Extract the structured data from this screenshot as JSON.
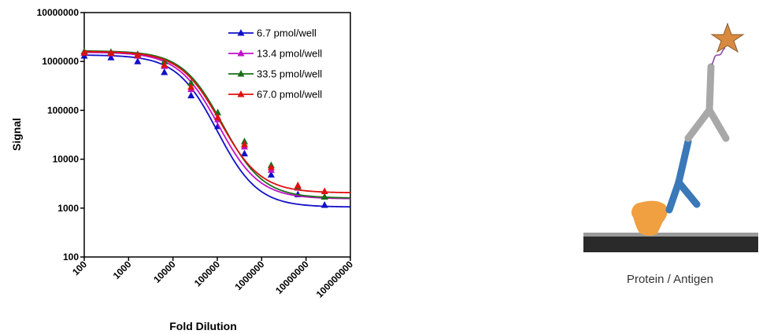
{
  "chart_data": {
    "type": "line",
    "xlabel": "Fold Dilution",
    "ylabel": "Signal",
    "x_scale": "log",
    "y_scale": "log",
    "xlim": [
      100,
      100000000
    ],
    "ylim": [
      100,
      10000000
    ],
    "x_tick_labels": [
      "100",
      "1000",
      "10000",
      "100000",
      "1000000",
      "10000000",
      "100000000"
    ],
    "x_ticks": [
      100,
      1000,
      10000,
      100000,
      1000000,
      10000000,
      100000000
    ],
    "y_tick_labels": [
      "100",
      "1000",
      "10000",
      "100000",
      "1000000",
      "10000000"
    ],
    "y_ticks": [
      100,
      1000,
      10000,
      100000,
      1000000,
      10000000
    ],
    "grid": false,
    "legend_position": "top-right",
    "marker": "triangle",
    "series": [
      {
        "name": "6.7 pmol/well",
        "color": "#1010c8",
        "x": [
          100,
          400,
          1600,
          6400,
          25600,
          102400,
          409600,
          1638400,
          6553600,
          26214400
        ],
        "y": [
          1300000,
          1200000,
          1000000,
          600000,
          200000,
          47000,
          13000,
          4800,
          1900,
          1150
        ],
        "fit": {
          "top": 1360000,
          "bottom": 1050,
          "log_ec50": 5.0,
          "hill": 0.95
        }
      },
      {
        "name": "13.4 pmol/well",
        "color": "#c010c8",
        "x": [
          100,
          400,
          1600,
          6400,
          25600,
          102400,
          409600,
          1638400,
          6553600,
          26214400
        ],
        "y": [
          1500000,
          1450000,
          1300000,
          800000,
          270000,
          65000,
          18000,
          6000,
          2600,
          1700
        ],
        "fit": {
          "top": 1550000,
          "bottom": 1550,
          "log_ec50": 5.03,
          "hill": 0.95
        }
      },
      {
        "name": "33.5 pmol/well",
        "color": "#1a6e1a",
        "x": [
          100,
          400,
          1600,
          6400,
          25600,
          102400,
          409600,
          1638400,
          6553600,
          26214400
        ],
        "y": [
          1600000,
          1550000,
          1400000,
          1000000,
          360000,
          90000,
          23000,
          7500,
          2800,
          1700
        ],
        "fit": {
          "top": 1650000,
          "bottom": 1600,
          "log_ec50": 5.12,
          "hill": 0.95
        }
      },
      {
        "name": "67.0 pmol/well",
        "color": "#e01010",
        "x": [
          100,
          400,
          1600,
          6400,
          25600,
          102400,
          409600,
          1638400,
          6553600,
          26214400
        ],
        "y": [
          1500000,
          1480000,
          1350000,
          850000,
          300000,
          72000,
          20000,
          6800,
          2900,
          2200
        ],
        "fit": {
          "top": 1600000,
          "bottom": 2050,
          "log_ec50": 5.07,
          "hill": 0.95
        }
      }
    ]
  },
  "diagram": {
    "caption": "Protein / Antigen",
    "colors": {
      "antigen": "#f0a040",
      "primary_antibody": "#3a78b8",
      "secondary_antibody": "#a8a8a8",
      "label_star": "#d88a40",
      "linker": "#8a4aa0",
      "surface": "#2a2a2a"
    }
  }
}
